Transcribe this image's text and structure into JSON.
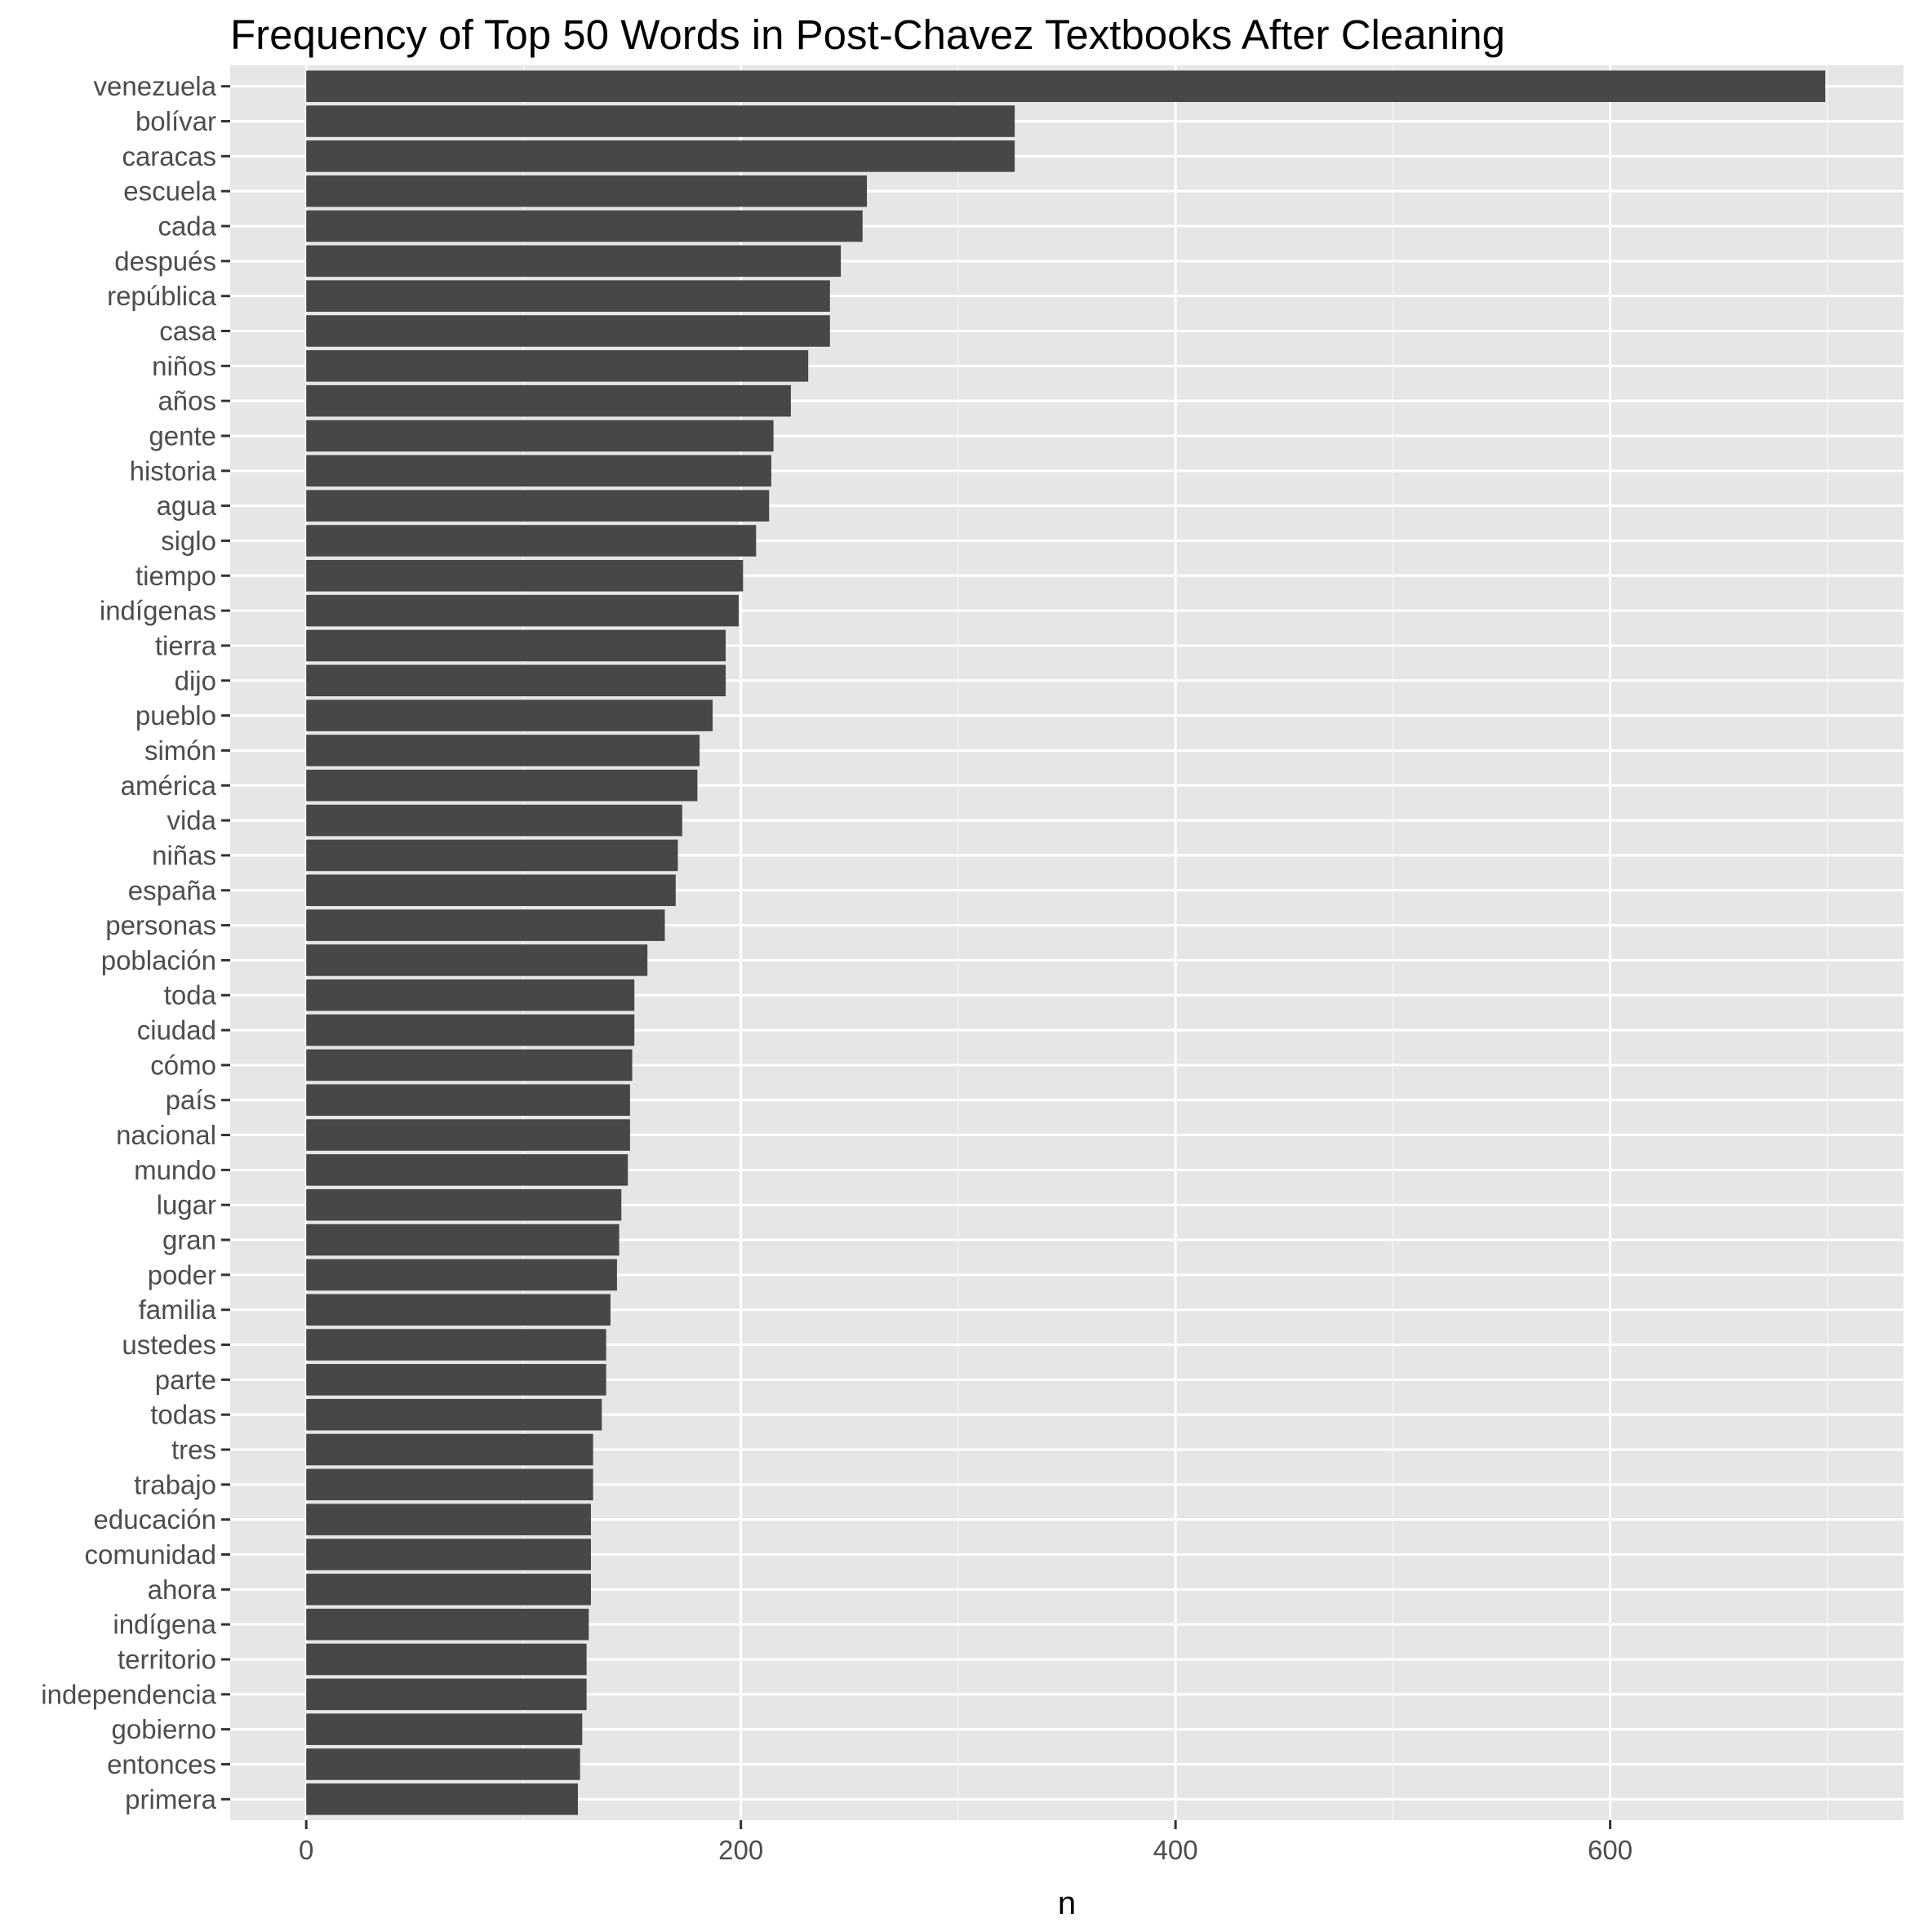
{
  "chart_data": {
    "type": "bar",
    "orientation": "horizontal",
    "title": "Frequency of Top 50 Words in Post-Chavez Textbooks After Cleaning",
    "xlabel": "n",
    "ylabel": "",
    "xlim": [
      -35,
      735
    ],
    "xticks": [
      0,
      200,
      400,
      600
    ],
    "grid": true,
    "legend": "none",
    "bar_color": "#474747",
    "panel_color": "#e6e6e6",
    "categories": [
      "venezuela",
      "bolívar",
      "caracas",
      "escuela",
      "cada",
      "después",
      "república",
      "casa",
      "niños",
      "años",
      "gente",
      "historia",
      "agua",
      "siglo",
      "tiempo",
      "indígenas",
      "tierra",
      "dijo",
      "pueblo",
      "simón",
      "américa",
      "vida",
      "niñas",
      "españa",
      "personas",
      "población",
      "toda",
      "ciudad",
      "cómo",
      "país",
      "nacional",
      "mundo",
      "lugar",
      "gran",
      "poder",
      "familia",
      "ustedes",
      "parte",
      "todas",
      "tres",
      "trabajo",
      "educación",
      "comunidad",
      "ahora",
      "indígena",
      "territorio",
      "independencia",
      "gobierno",
      "entonces",
      "primera"
    ],
    "values": [
      699,
      326,
      326,
      258,
      256,
      246,
      241,
      241,
      231,
      223,
      215,
      214,
      213,
      207,
      201,
      199,
      193,
      193,
      187,
      181,
      180,
      173,
      171,
      170,
      165,
      157,
      151,
      151,
      150,
      149,
      149,
      148,
      145,
      144,
      143,
      140,
      138,
      138,
      136,
      132,
      132,
      131,
      131,
      131,
      130,
      129,
      129,
      127,
      126,
      125
    ]
  }
}
